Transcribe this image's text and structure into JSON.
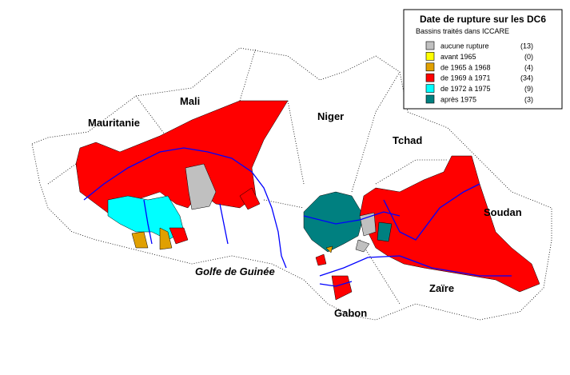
{
  "legend": {
    "title": "Date de rupture sur les DC6",
    "subtitle": "Bassins traités dans ICCARE",
    "items": [
      {
        "label": "aucune rupture",
        "count": "(13)",
        "color": "#c0c0c0"
      },
      {
        "label": "avant 1965",
        "count": "(0)",
        "color": "#ffff00"
      },
      {
        "label": "de 1965 à 1968",
        "count": "(4)",
        "color": "#e0a000"
      },
      {
        "label": "de 1969 à 1971",
        "count": "(34)",
        "color": "#ff0000"
      },
      {
        "label": "de 1972 à 1975",
        "count": "(9)",
        "color": "#00ffff"
      },
      {
        "label": "après 1975",
        "count": "(3)",
        "color": "#008080"
      }
    ]
  },
  "places": {
    "mauritanie": "Mauritanie",
    "mali": "Mali",
    "niger": "Niger",
    "tchad": "Tchad",
    "soudan": "Soudan",
    "zaire": "Zaïre",
    "gabon": "Gabon",
    "golfe": "Golfe de Guinée"
  }
}
